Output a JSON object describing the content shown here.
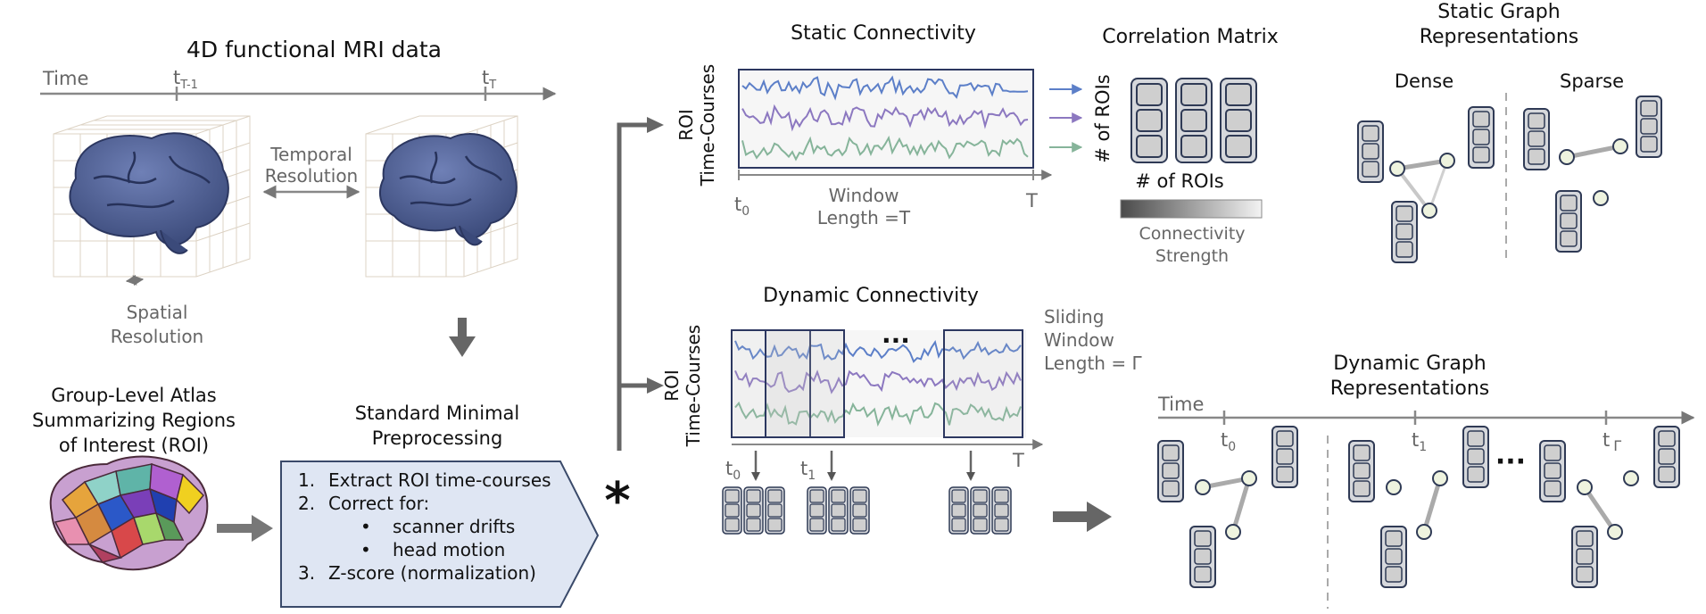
{
  "fmri": {
    "title": "4D functional MRI data",
    "time_label": "Time",
    "tick_tminus1": "t",
    "tick_tminus1_sub": "T-1",
    "tick_t": "t",
    "tick_t_sub": "T",
    "temporal_res_line1": "Temporal",
    "temporal_res_line2": "Resolution",
    "spatial_res_line1": "Spatial",
    "spatial_res_line2": "Resolution"
  },
  "atlas": {
    "line1": "Group-Level Atlas",
    "line2": "Summarizing Regions",
    "line3": "of Interest (ROI)"
  },
  "preprocessing": {
    "title_line1": "Standard Minimal",
    "title_line2": "Preprocessing",
    "step1": "Extract ROI time-courses",
    "step2": "Correct for:",
    "bullet1": "scanner drifts",
    "bullet2": "head motion",
    "step3": "Z-score (normalization)",
    "num1": "1.",
    "num2": "2.",
    "num3": "3.",
    "bullet_symbol": "•",
    "asterisk": "*"
  },
  "static": {
    "title": "Static Connectivity",
    "ylabel_line1": "ROI",
    "ylabel_line2": "Time-Courses",
    "t0": "t",
    "t0_sub": "0",
    "tend": "T",
    "window_line1": "Window",
    "window_line2": "Length =T"
  },
  "corr": {
    "title": "Correlation Matrix",
    "row_label": "# of ROIs",
    "col_label": "# of ROIs",
    "colorbar_line1": "Connectivity",
    "colorbar_line2": "Strength"
  },
  "static_graph": {
    "title_line1": "Static Graph",
    "title_line2": "Representations",
    "dense": "Dense",
    "sparse": "Sparse"
  },
  "dynamic": {
    "title": "Dynamic Connectivity",
    "ylabel_line1": "ROI",
    "ylabel_line2": "Time-Courses",
    "dots": "...",
    "sliding_line1": "Sliding",
    "sliding_line2": "Window",
    "sliding_line3": "Length = Γ",
    "t0": "t",
    "t0_sub": "0",
    "t1": "t",
    "t1_sub": "1",
    "tend": "T"
  },
  "dynamic_graph": {
    "title_line1": "Dynamic Graph",
    "title_line2": "Representations",
    "time_label": "Time",
    "t0": "t",
    "t0_sub": "0",
    "t1": "t",
    "t1_sub": "1",
    "tg": "t",
    "tg_sub": "Γ",
    "dots": "···"
  },
  "colors": {
    "series_blue": "#5c7fc8",
    "series_purple": "#8c78c0",
    "series_green": "#86b49a",
    "node_fill": "#d6d8dc",
    "node_border": "#2f3a55",
    "prep_fill": "#dfe6f3",
    "brain": "#4a5a8c"
  }
}
